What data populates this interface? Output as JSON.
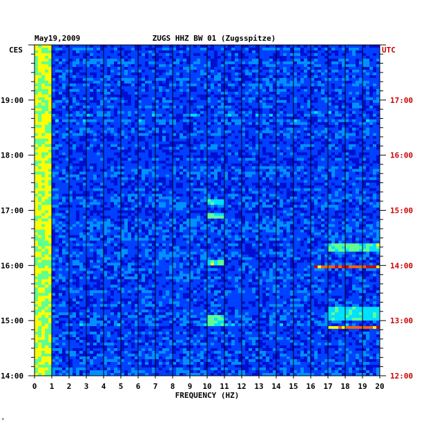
{
  "header": {
    "date": "May19,2009",
    "station": "ZUGS HHZ BW 01 (Zugsspitze)",
    "left_zone": "CES",
    "right_zone": "UTC"
  },
  "colors": {
    "background": "#0000a0",
    "left_labels": "#000000",
    "right_labels": "#cc0000",
    "grid": "#000000"
  },
  "corner_mark": "*",
  "chart_data": {
    "type": "heatmap",
    "title": "ZUGS HHZ BW 01 (Zugsspitze)",
    "xlabel": "FREQUENCY (HZ)",
    "ylabel": "",
    "xlim": [
      0,
      20
    ],
    "x_ticks": [
      "0",
      "1",
      "2",
      "3",
      "4",
      "5",
      "6",
      "7",
      "8",
      "9",
      "10",
      "11",
      "12",
      "13",
      "14",
      "15",
      "16",
      "17",
      "18",
      "19",
      "20"
    ],
    "y_range_local": [
      "14:00",
      "20:00"
    ],
    "y_ticks_local": [
      "19:00",
      "18:00",
      "17:00",
      "16:00",
      "15:00",
      "14:00"
    ],
    "y_ticks_utc": [
      "17:00",
      "16:00",
      "15:00",
      "14:00",
      "13:00",
      "12:00"
    ],
    "colorscale": [
      "#0000a0",
      "#0010d0",
      "#0040ff",
      "#0090ff",
      "#00e0ff",
      "#60ff90",
      "#ffff00",
      "#ff6000",
      "#d00000"
    ],
    "features": [
      {
        "desc": "persistent low-frequency energy",
        "freq_hz": [
          0,
          1
        ],
        "time_local": [
          "14:00",
          "20:00"
        ],
        "intensity": 0.8
      },
      {
        "desc": "strong narrow line",
        "freq_hz": [
          16.3,
          20
        ],
        "time_local": [
          "15:58",
          "16:01"
        ],
        "intensity": 1.0
      },
      {
        "desc": "strong narrow line",
        "freq_hz": [
          17,
          20
        ],
        "time_local": [
          "14:50",
          "14:53"
        ],
        "intensity": 0.95
      },
      {
        "desc": "band 17-20 Hz",
        "freq_hz": [
          17,
          20
        ],
        "time_local": [
          "16:15",
          "16:25"
        ],
        "intensity": 0.7
      },
      {
        "desc": "band 17-20 Hz",
        "freq_hz": [
          17,
          20
        ],
        "time_local": [
          "15:00",
          "15:15"
        ],
        "intensity": 0.6
      },
      {
        "desc": "patch near 10.5 Hz",
        "freq_hz": [
          10,
          11
        ],
        "time_local": [
          "16:50",
          "16:57"
        ],
        "intensity": 0.7
      },
      {
        "desc": "patch near 10.5 Hz",
        "freq_hz": [
          10,
          11
        ],
        "time_local": [
          "16:01",
          "16:07"
        ],
        "intensity": 0.7
      },
      {
        "desc": "patch near 10.5 Hz",
        "freq_hz": [
          10,
          11
        ],
        "time_local": [
          "14:55",
          "15:05"
        ],
        "intensity": 0.65
      },
      {
        "desc": "patch near 10.5 Hz",
        "freq_hz": [
          10,
          11
        ],
        "time_local": [
          "17:05",
          "17:12"
        ],
        "intensity": 0.65
      }
    ]
  }
}
